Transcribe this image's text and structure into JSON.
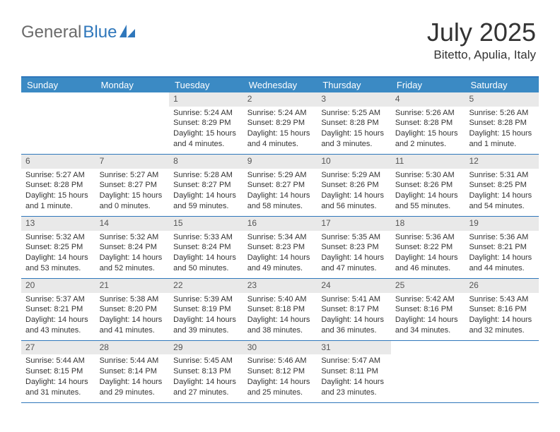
{
  "brand": {
    "part1": "General",
    "part2": "Blue"
  },
  "title": "July 2025",
  "location": "Bitetto, Apulia, Italy",
  "colors": {
    "accent": "#3b8ac4",
    "accent_dark": "#2f77bb",
    "daynum_bg": "#e9e9e9",
    "text": "#333333",
    "logo_gray": "#6a6a6a"
  },
  "day_headers": [
    "Sunday",
    "Monday",
    "Tuesday",
    "Wednesday",
    "Thursday",
    "Friday",
    "Saturday"
  ],
  "weeks": [
    [
      {
        "n": "",
        "sr": "",
        "ss": "",
        "dl": ""
      },
      {
        "n": "",
        "sr": "",
        "ss": "",
        "dl": ""
      },
      {
        "n": "1",
        "sr": "Sunrise: 5:24 AM",
        "ss": "Sunset: 8:29 PM",
        "dl": "Daylight: 15 hours and 4 minutes."
      },
      {
        "n": "2",
        "sr": "Sunrise: 5:24 AM",
        "ss": "Sunset: 8:29 PM",
        "dl": "Daylight: 15 hours and 4 minutes."
      },
      {
        "n": "3",
        "sr": "Sunrise: 5:25 AM",
        "ss": "Sunset: 8:28 PM",
        "dl": "Daylight: 15 hours and 3 minutes."
      },
      {
        "n": "4",
        "sr": "Sunrise: 5:26 AM",
        "ss": "Sunset: 8:28 PM",
        "dl": "Daylight: 15 hours and 2 minutes."
      },
      {
        "n": "5",
        "sr": "Sunrise: 5:26 AM",
        "ss": "Sunset: 8:28 PM",
        "dl": "Daylight: 15 hours and 1 minute."
      }
    ],
    [
      {
        "n": "6",
        "sr": "Sunrise: 5:27 AM",
        "ss": "Sunset: 8:28 PM",
        "dl": "Daylight: 15 hours and 1 minute."
      },
      {
        "n": "7",
        "sr": "Sunrise: 5:27 AM",
        "ss": "Sunset: 8:27 PM",
        "dl": "Daylight: 15 hours and 0 minutes."
      },
      {
        "n": "8",
        "sr": "Sunrise: 5:28 AM",
        "ss": "Sunset: 8:27 PM",
        "dl": "Daylight: 14 hours and 59 minutes."
      },
      {
        "n": "9",
        "sr": "Sunrise: 5:29 AM",
        "ss": "Sunset: 8:27 PM",
        "dl": "Daylight: 14 hours and 58 minutes."
      },
      {
        "n": "10",
        "sr": "Sunrise: 5:29 AM",
        "ss": "Sunset: 8:26 PM",
        "dl": "Daylight: 14 hours and 56 minutes."
      },
      {
        "n": "11",
        "sr": "Sunrise: 5:30 AM",
        "ss": "Sunset: 8:26 PM",
        "dl": "Daylight: 14 hours and 55 minutes."
      },
      {
        "n": "12",
        "sr": "Sunrise: 5:31 AM",
        "ss": "Sunset: 8:25 PM",
        "dl": "Daylight: 14 hours and 54 minutes."
      }
    ],
    [
      {
        "n": "13",
        "sr": "Sunrise: 5:32 AM",
        "ss": "Sunset: 8:25 PM",
        "dl": "Daylight: 14 hours and 53 minutes."
      },
      {
        "n": "14",
        "sr": "Sunrise: 5:32 AM",
        "ss": "Sunset: 8:24 PM",
        "dl": "Daylight: 14 hours and 52 minutes."
      },
      {
        "n": "15",
        "sr": "Sunrise: 5:33 AM",
        "ss": "Sunset: 8:24 PM",
        "dl": "Daylight: 14 hours and 50 minutes."
      },
      {
        "n": "16",
        "sr": "Sunrise: 5:34 AM",
        "ss": "Sunset: 8:23 PM",
        "dl": "Daylight: 14 hours and 49 minutes."
      },
      {
        "n": "17",
        "sr": "Sunrise: 5:35 AM",
        "ss": "Sunset: 8:23 PM",
        "dl": "Daylight: 14 hours and 47 minutes."
      },
      {
        "n": "18",
        "sr": "Sunrise: 5:36 AM",
        "ss": "Sunset: 8:22 PM",
        "dl": "Daylight: 14 hours and 46 minutes."
      },
      {
        "n": "19",
        "sr": "Sunrise: 5:36 AM",
        "ss": "Sunset: 8:21 PM",
        "dl": "Daylight: 14 hours and 44 minutes."
      }
    ],
    [
      {
        "n": "20",
        "sr": "Sunrise: 5:37 AM",
        "ss": "Sunset: 8:21 PM",
        "dl": "Daylight: 14 hours and 43 minutes."
      },
      {
        "n": "21",
        "sr": "Sunrise: 5:38 AM",
        "ss": "Sunset: 8:20 PM",
        "dl": "Daylight: 14 hours and 41 minutes."
      },
      {
        "n": "22",
        "sr": "Sunrise: 5:39 AM",
        "ss": "Sunset: 8:19 PM",
        "dl": "Daylight: 14 hours and 39 minutes."
      },
      {
        "n": "23",
        "sr": "Sunrise: 5:40 AM",
        "ss": "Sunset: 8:18 PM",
        "dl": "Daylight: 14 hours and 38 minutes."
      },
      {
        "n": "24",
        "sr": "Sunrise: 5:41 AM",
        "ss": "Sunset: 8:17 PM",
        "dl": "Daylight: 14 hours and 36 minutes."
      },
      {
        "n": "25",
        "sr": "Sunrise: 5:42 AM",
        "ss": "Sunset: 8:16 PM",
        "dl": "Daylight: 14 hours and 34 minutes."
      },
      {
        "n": "26",
        "sr": "Sunrise: 5:43 AM",
        "ss": "Sunset: 8:16 PM",
        "dl": "Daylight: 14 hours and 32 minutes."
      }
    ],
    [
      {
        "n": "27",
        "sr": "Sunrise: 5:44 AM",
        "ss": "Sunset: 8:15 PM",
        "dl": "Daylight: 14 hours and 31 minutes."
      },
      {
        "n": "28",
        "sr": "Sunrise: 5:44 AM",
        "ss": "Sunset: 8:14 PM",
        "dl": "Daylight: 14 hours and 29 minutes."
      },
      {
        "n": "29",
        "sr": "Sunrise: 5:45 AM",
        "ss": "Sunset: 8:13 PM",
        "dl": "Daylight: 14 hours and 27 minutes."
      },
      {
        "n": "30",
        "sr": "Sunrise: 5:46 AM",
        "ss": "Sunset: 8:12 PM",
        "dl": "Daylight: 14 hours and 25 minutes."
      },
      {
        "n": "31",
        "sr": "Sunrise: 5:47 AM",
        "ss": "Sunset: 8:11 PM",
        "dl": "Daylight: 14 hours and 23 minutes."
      },
      {
        "n": "",
        "sr": "",
        "ss": "",
        "dl": ""
      },
      {
        "n": "",
        "sr": "",
        "ss": "",
        "dl": ""
      }
    ]
  ]
}
